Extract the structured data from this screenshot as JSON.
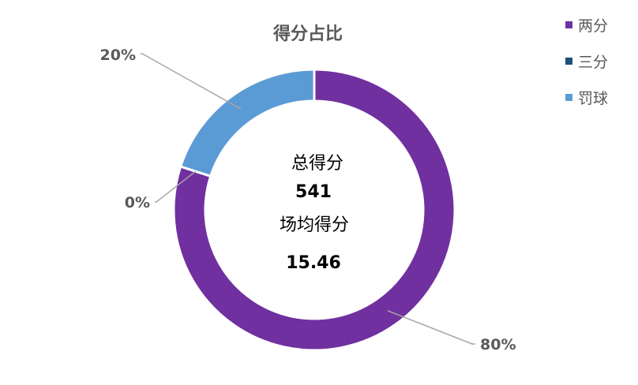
{
  "chart_data": {
    "type": "pie",
    "title": "得分占比",
    "categories": [
      "两分",
      "三分",
      "罚球"
    ],
    "values": [
      80,
      0,
      20
    ],
    "unit": "%",
    "colors": [
      "#7030A0",
      "#1F4E79",
      "#5B9BD5"
    ],
    "data_labels": [
      "80%",
      "0%",
      "20%"
    ],
    "legend_position": "top-right",
    "center_text": {
      "total_label": "总得分",
      "total_value": "541",
      "avg_label": "场均得分",
      "avg_value": "15.46"
    }
  }
}
